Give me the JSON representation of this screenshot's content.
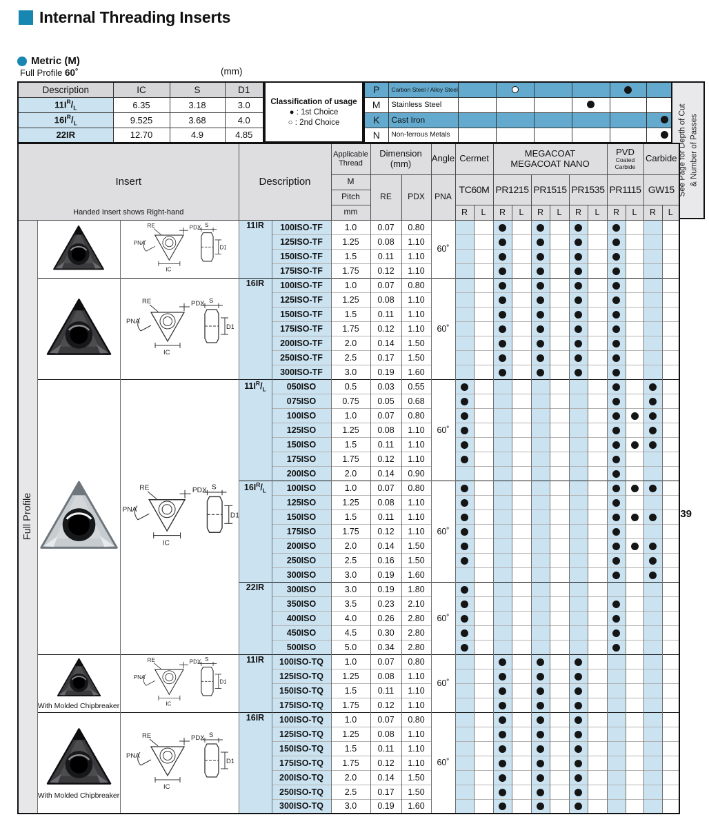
{
  "page": {
    "title": "Internal Threading Inserts",
    "metric_label": "Metric (M)",
    "profile_label": "Full Profile",
    "profile_angle": "60˚",
    "unit_label": "(mm)",
    "page_ref": "J39",
    "side_note_line1": "See Page for Depth of Cut",
    "side_note_line2": "& Number of Passes"
  },
  "colors": {
    "accent_teal": "#1787B2",
    "light_blue": "#CBE3F1",
    "medium_blue": "#63AACE",
    "header_gray": "#DEDEE0"
  },
  "spec_table": {
    "headers": [
      "Description",
      "IC",
      "S",
      "D1"
    ],
    "rows": [
      {
        "desc_base": "11I",
        "desc_rl": true,
        "ic": "6.35",
        "s": "3.18",
        "d1": "3.0"
      },
      {
        "desc_base": "16I",
        "desc_rl": true,
        "ic": "9.525",
        "s": "3.68",
        "d1": "4.0"
      },
      {
        "desc_base": "22IR",
        "desc_rl": false,
        "ic": "12.70",
        "s": "4.9",
        "d1": "4.85"
      }
    ]
  },
  "classification": {
    "title": "Classification of usage",
    "first": "● : 1st Choice",
    "second": "○ : 2nd Choice"
  },
  "materials": {
    "rows": [
      {
        "code": "P",
        "name": "Carbon Steel / Alloy Steel",
        "blue": true,
        "marks": {
          "pr1215": "second",
          "pr1115": "first"
        }
      },
      {
        "code": "M",
        "name": "Stainless Steel",
        "blue": false,
        "marks": {
          "pr1535": "first"
        }
      },
      {
        "code": "K",
        "name": "Cast Iron",
        "blue": true,
        "marks": {
          "gw15": "first"
        }
      },
      {
        "code": "N",
        "name": "Non-ferrous Metals",
        "blue": false,
        "marks": {
          "gw15": "first"
        }
      }
    ]
  },
  "main": {
    "insert_header": "Insert",
    "insert_caption": "Handed Insert shows Right-hand",
    "description_header": "Description",
    "applicable_thread": [
      "Applicable",
      "Thread"
    ],
    "thread_sub": [
      "M",
      "Pitch",
      "mm"
    ],
    "dimension_header": [
      "Dimension",
      "(mm)"
    ],
    "dim_cols": [
      "RE",
      "PDX"
    ],
    "angle_header": "Angle",
    "angle_sub": "PNA",
    "group_headers": {
      "cermet": "Cermet",
      "megacoat": [
        "MEGACOAT",
        "MEGACOAT NANO"
      ],
      "pvd": [
        "PVD",
        "Coated Carbide"
      ],
      "carbide": "Carbide"
    },
    "grades": [
      {
        "id": "tc60m",
        "label": "TC60M"
      },
      {
        "id": "pr1215",
        "label": "PR1215"
      },
      {
        "id": "pr1515",
        "label": "PR1515"
      },
      {
        "id": "pr1535",
        "label": "PR1535"
      },
      {
        "id": "pr1115",
        "label": "PR1115"
      },
      {
        "id": "gw15",
        "label": "GW15"
      }
    ],
    "rl": [
      "R",
      "L"
    ],
    "full_profile_label": "Full Profile",
    "chipbreaker_caption": "With Molded Chipbreaker",
    "diagram_labels": {
      "re": "RE",
      "pdx": "PDX",
      "pna": "PNA",
      "ic": "IC",
      "s": "S",
      "d1": "D1"
    },
    "sections": [
      {
        "series_base": "11IR",
        "series_rl": false,
        "angle": "60˚",
        "image": {
          "span": 4,
          "variant": "dark",
          "caption": ""
        },
        "rows": [
          {
            "name": "100ISO-TF",
            "pitch": "1.0",
            "re": "0.07",
            "pdx": "0.80",
            "dots": [
              "pr1215_r",
              "pr1515_r",
              "pr1535_r",
              "pr1115_r"
            ]
          },
          {
            "name": "125ISO-TF",
            "pitch": "1.25",
            "re": "0.08",
            "pdx": "1.10",
            "dots": [
              "pr1215_r",
              "pr1515_r",
              "pr1535_r",
              "pr1115_r"
            ]
          },
          {
            "name": "150ISO-TF",
            "pitch": "1.5",
            "re": "0.11",
            "pdx": "1.10",
            "dots": [
              "pr1215_r",
              "pr1515_r",
              "pr1535_r",
              "pr1115_r"
            ]
          },
          {
            "name": "175ISO-TF",
            "pitch": "1.75",
            "re": "0.12",
            "pdx": "1.10",
            "dots": [
              "pr1215_r",
              "pr1515_r",
              "pr1535_r",
              "pr1115_r"
            ]
          }
        ]
      },
      {
        "series_base": "16IR",
        "series_rl": false,
        "angle": "60˚",
        "image": {
          "span": 7,
          "variant": "dark",
          "caption": ""
        },
        "rows": [
          {
            "name": "100ISO-TF",
            "pitch": "1.0",
            "re": "0.07",
            "pdx": "0.80",
            "dots": [
              "pr1215_r",
              "pr1515_r",
              "pr1535_r",
              "pr1115_r"
            ]
          },
          {
            "name": "125ISO-TF",
            "pitch": "1.25",
            "re": "0.08",
            "pdx": "1.10",
            "dots": [
              "pr1215_r",
              "pr1515_r",
              "pr1535_r",
              "pr1115_r"
            ]
          },
          {
            "name": "150ISO-TF",
            "pitch": "1.5",
            "re": "0.11",
            "pdx": "1.10",
            "dots": [
              "pr1215_r",
              "pr1515_r",
              "pr1535_r",
              "pr1115_r"
            ]
          },
          {
            "name": "175ISO-TF",
            "pitch": "1.75",
            "re": "0.12",
            "pdx": "1.10",
            "dots": [
              "pr1215_r",
              "pr1515_r",
              "pr1535_r",
              "pr1115_r"
            ]
          },
          {
            "name": "200ISO-TF",
            "pitch": "2.0",
            "re": "0.14",
            "pdx": "1.50",
            "dots": [
              "pr1215_r",
              "pr1515_r",
              "pr1535_r",
              "pr1115_r"
            ]
          },
          {
            "name": "250ISO-TF",
            "pitch": "2.5",
            "re": "0.17",
            "pdx": "1.50",
            "dots": [
              "pr1215_r",
              "pr1515_r",
              "pr1535_r",
              "pr1115_r"
            ]
          },
          {
            "name": "300ISO-TF",
            "pitch": "3.0",
            "re": "0.19",
            "pdx": "1.60",
            "dots": [
              "pr1215_r",
              "pr1515_r",
              "pr1535_r",
              "pr1115_r"
            ]
          }
        ]
      },
      {
        "series_base": "11I",
        "series_rl": true,
        "angle": "60˚",
        "image": {
          "span": 19,
          "variant": "silver",
          "caption": ""
        },
        "rows": [
          {
            "name": "050ISO",
            "pitch": "0.5",
            "re": "0.03",
            "pdx": "0.55",
            "dots": [
              "tc60m_r",
              "pr1115_r",
              "gw15_r"
            ]
          },
          {
            "name": "075ISO",
            "pitch": "0.75",
            "re": "0.05",
            "pdx": "0.68",
            "dots": [
              "tc60m_r",
              "pr1115_r",
              "gw15_r"
            ]
          },
          {
            "name": "100ISO",
            "pitch": "1.0",
            "re": "0.07",
            "pdx": "0.80",
            "dots": [
              "tc60m_r",
              "pr1115_r",
              "pr1115_l",
              "gw15_r"
            ]
          },
          {
            "name": "125ISO",
            "pitch": "1.25",
            "re": "0.08",
            "pdx": "1.10",
            "dots": [
              "tc60m_r",
              "pr1115_r",
              "gw15_r"
            ]
          },
          {
            "name": "150ISO",
            "pitch": "1.5",
            "re": "0.11",
            "pdx": "1.10",
            "dots": [
              "tc60m_r",
              "pr1115_r",
              "pr1115_l",
              "gw15_r"
            ]
          },
          {
            "name": "175ISO",
            "pitch": "1.75",
            "re": "0.12",
            "pdx": "1.10",
            "dots": [
              "tc60m_r",
              "pr1115_r"
            ]
          },
          {
            "name": "200ISO",
            "pitch": "2.0",
            "re": "0.14",
            "pdx": "0.90",
            "dots": [
              "pr1115_r"
            ]
          }
        ]
      },
      {
        "series_base": "16I",
        "series_rl": true,
        "angle": "60˚",
        "image": null,
        "rows": [
          {
            "name": "100ISO",
            "pitch": "1.0",
            "re": "0.07",
            "pdx": "0.80",
            "dots": [
              "tc60m_r",
              "pr1115_r",
              "pr1115_l",
              "gw15_r"
            ]
          },
          {
            "name": "125ISO",
            "pitch": "1.25",
            "re": "0.08",
            "pdx": "1.10",
            "dots": [
              "tc60m_r",
              "pr1115_r"
            ]
          },
          {
            "name": "150ISO",
            "pitch": "1.5",
            "re": "0.11",
            "pdx": "1.10",
            "dots": [
              "tc60m_r",
              "pr1115_r",
              "pr1115_l",
              "gw15_r"
            ]
          },
          {
            "name": "175ISO",
            "pitch": "1.75",
            "re": "0.12",
            "pdx": "1.10",
            "dots": [
              "tc60m_r",
              "pr1115_r"
            ]
          },
          {
            "name": "200ISO",
            "pitch": "2.0",
            "re": "0.14",
            "pdx": "1.50",
            "dots": [
              "tc60m_r",
              "pr1115_r",
              "pr1115_l",
              "gw15_r"
            ]
          },
          {
            "name": "250ISO",
            "pitch": "2.5",
            "re": "0.16",
            "pdx": "1.50",
            "dots": [
              "tc60m_r",
              "pr1115_r",
              "gw15_r"
            ]
          },
          {
            "name": "300ISO",
            "pitch": "3.0",
            "re": "0.19",
            "pdx": "1.60",
            "dots": [
              "pr1115_r",
              "gw15_r"
            ]
          }
        ]
      },
      {
        "series_base": "22IR",
        "series_rl": false,
        "angle": "60˚",
        "image": null,
        "rows": [
          {
            "name": "300ISO",
            "pitch": "3.0",
            "re": "0.19",
            "pdx": "1.80",
            "dots": [
              "tc60m_r"
            ]
          },
          {
            "name": "350ISO",
            "pitch": "3.5",
            "re": "0.23",
            "pdx": "2.10",
            "dots": [
              "tc60m_r",
              "pr1115_r"
            ]
          },
          {
            "name": "400ISO",
            "pitch": "4.0",
            "re": "0.26",
            "pdx": "2.80",
            "dots": [
              "tc60m_r",
              "pr1115_r"
            ]
          },
          {
            "name": "450ISO",
            "pitch": "4.5",
            "re": "0.30",
            "pdx": "2.80",
            "dots": [
              "tc60m_r",
              "pr1115_r"
            ]
          },
          {
            "name": "500ISO",
            "pitch": "5.0",
            "re": "0.34",
            "pdx": "2.80",
            "dots": [
              "tc60m_r",
              "pr1115_r"
            ]
          }
        ]
      },
      {
        "series_base": "11IR",
        "series_rl": false,
        "angle": "60˚",
        "image": {
          "span": 4,
          "variant": "dark",
          "caption": "With Molded Chipbreaker"
        },
        "rows": [
          {
            "name": "100ISO-TQ",
            "pitch": "1.0",
            "re": "0.07",
            "pdx": "0.80",
            "dots": [
              "pr1215_r",
              "pr1515_r",
              "pr1535_r"
            ]
          },
          {
            "name": "125ISO-TQ",
            "pitch": "1.25",
            "re": "0.08",
            "pdx": "1.10",
            "dots": [
              "pr1215_r",
              "pr1515_r",
              "pr1535_r"
            ]
          },
          {
            "name": "150ISO-TQ",
            "pitch": "1.5",
            "re": "0.11",
            "pdx": "1.10",
            "dots": [
              "pr1215_r",
              "pr1515_r",
              "pr1535_r"
            ]
          },
          {
            "name": "175ISO-TQ",
            "pitch": "1.75",
            "re": "0.12",
            "pdx": "1.10",
            "dots": [
              "pr1215_r",
              "pr1515_r",
              "pr1535_r"
            ]
          }
        ]
      },
      {
        "series_base": "16IR",
        "series_rl": false,
        "angle": "60˚",
        "image": {
          "span": 7,
          "variant": "dark",
          "caption": "With Molded Chipbreaker"
        },
        "rows": [
          {
            "name": "100ISO-TQ",
            "pitch": "1.0",
            "re": "0.07",
            "pdx": "0.80",
            "dots": [
              "pr1215_r",
              "pr1515_r",
              "pr1535_r"
            ]
          },
          {
            "name": "125ISO-TQ",
            "pitch": "1.25",
            "re": "0.08",
            "pdx": "1.10",
            "dots": [
              "pr1215_r",
              "pr1515_r",
              "pr1535_r"
            ]
          },
          {
            "name": "150ISO-TQ",
            "pitch": "1.5",
            "re": "0.11",
            "pdx": "1.10",
            "dots": [
              "pr1215_r",
              "pr1515_r",
              "pr1535_r"
            ]
          },
          {
            "name": "175ISO-TQ",
            "pitch": "1.75",
            "re": "0.12",
            "pdx": "1.10",
            "dots": [
              "pr1215_r",
              "pr1515_r",
              "pr1535_r"
            ]
          },
          {
            "name": "200ISO-TQ",
            "pitch": "2.0",
            "re": "0.14",
            "pdx": "1.50",
            "dots": [
              "pr1215_r",
              "pr1515_r",
              "pr1535_r"
            ]
          },
          {
            "name": "250ISO-TQ",
            "pitch": "2.5",
            "re": "0.17",
            "pdx": "1.50",
            "dots": [
              "pr1215_r",
              "pr1515_r",
              "pr1535_r"
            ]
          },
          {
            "name": "300ISO-TQ",
            "pitch": "3.0",
            "re": "0.19",
            "pdx": "1.60",
            "dots": [
              "pr1215_r",
              "pr1515_r",
              "pr1535_r"
            ]
          }
        ]
      }
    ]
  }
}
